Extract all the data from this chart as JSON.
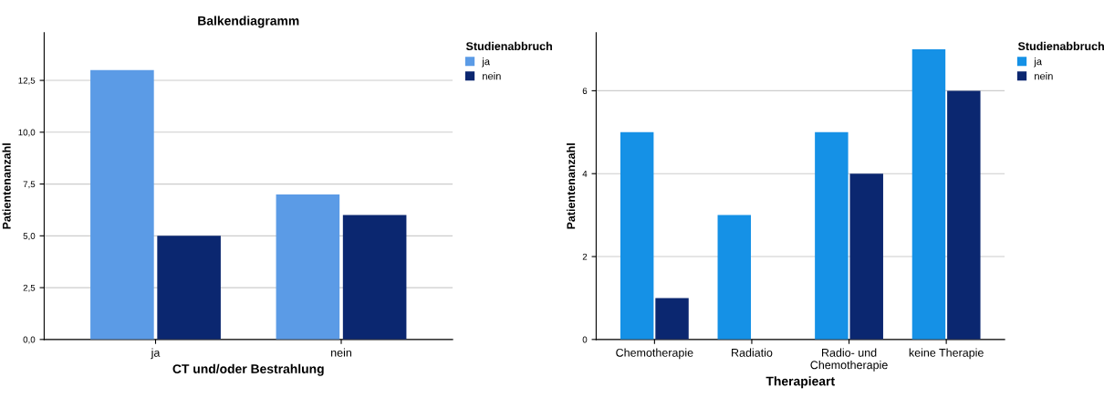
{
  "chart_data": [
    {
      "type": "bar",
      "title": "Balkendiagramm",
      "xlabel": "CT und/oder Bestrahlung",
      "ylabel": "Patientenanzahl",
      "legend_title": "Studienabbruch",
      "legend": "right",
      "grid": "y",
      "categories": [
        "ja",
        "nein"
      ],
      "series": [
        {
          "name": "ja",
          "color": "#5b9be6",
          "values": [
            13,
            7
          ]
        },
        {
          "name": "nein",
          "color": "#0b2770",
          "values": [
            5,
            6
          ]
        }
      ],
      "ylim": [
        0,
        14.8
      ],
      "yticks": [
        {
          "value": 0,
          "label": "0,0"
        },
        {
          "value": 2.5,
          "label": "2,5"
        },
        {
          "value": 5,
          "label": "5,0"
        },
        {
          "value": 7.5,
          "label": "7,5"
        },
        {
          "value": 10,
          "label": "10,0"
        },
        {
          "value": 12.5,
          "label": "12,5"
        }
      ]
    },
    {
      "type": "bar",
      "xlabel": "Therapieart",
      "ylabel": "Patientenanzahl",
      "legend_title": "Studienabbruch",
      "legend": "right",
      "grid": "y",
      "categories": [
        "Chemotherapie",
        "Radiatio",
        "Radio- und\nChemotherapie",
        "keine Therapie"
      ],
      "series": [
        {
          "name": "ja",
          "color": "#1591e6",
          "values": [
            5,
            3,
            5,
            7
          ]
        },
        {
          "name": "nein",
          "color": "#0b2770",
          "values": [
            1,
            0,
            4,
            6
          ]
        }
      ],
      "ylim": [
        0,
        7.4
      ],
      "yticks": [
        0,
        2,
        4,
        6
      ]
    }
  ]
}
